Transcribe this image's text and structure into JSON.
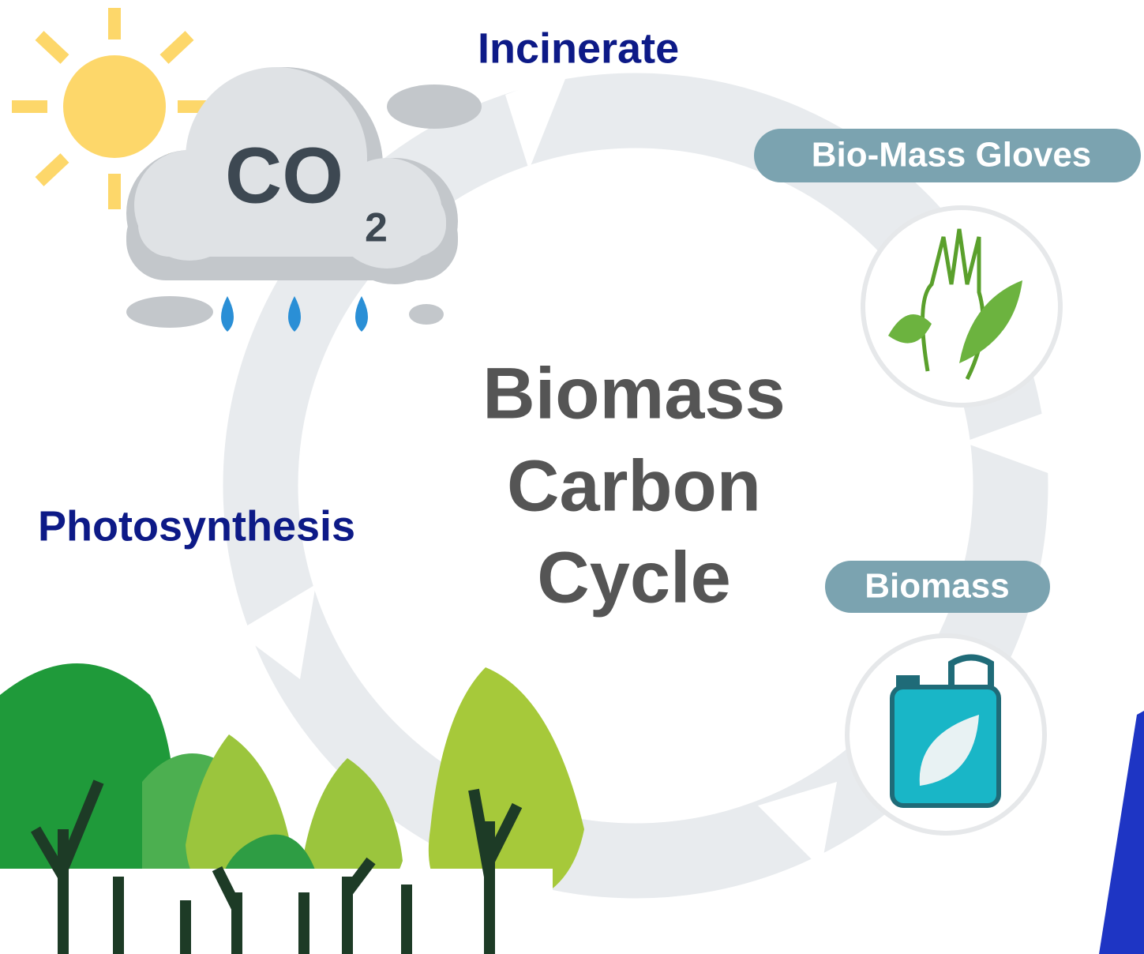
{
  "cloud": {
    "text": "CO",
    "subscript": "2"
  },
  "steps": [
    {
      "label": "Incinerate"
    },
    {
      "label": "Bio-Mass Gloves"
    },
    {
      "label": "Biomass"
    },
    {
      "label": "Photosynthesis"
    }
  ],
  "title": {
    "lines": [
      "Biomass",
      "Carbon",
      "Cycle"
    ]
  }
}
